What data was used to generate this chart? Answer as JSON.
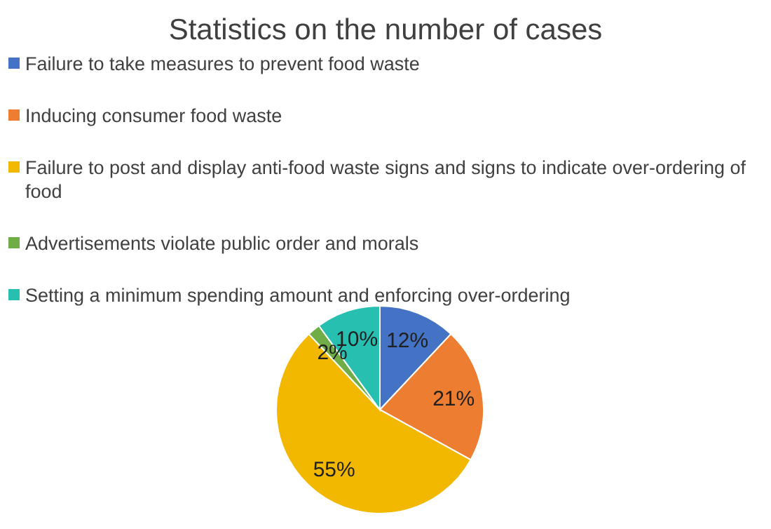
{
  "chart_data": {
    "type": "pie",
    "title": "Statistics on the number of cases",
    "categories": [
      "Failure to take measures to prevent food waste",
      "Inducing consumer food waste",
      "Failure to post and display anti-food waste signs and signs to indicate over-ordering of food",
      "Advertisements violate public order and morals",
      "Setting a minimum spending amount and enforcing over-ordering"
    ],
    "values": [
      12,
      21,
      55,
      2,
      10
    ],
    "colors": [
      "#4472c4",
      "#ed7d31",
      "#f2b800",
      "#70ad47",
      "#26bfb0"
    ],
    "value_labels": [
      "12%",
      "21%",
      "55%",
      "2%",
      "10%"
    ],
    "legend": "top"
  }
}
